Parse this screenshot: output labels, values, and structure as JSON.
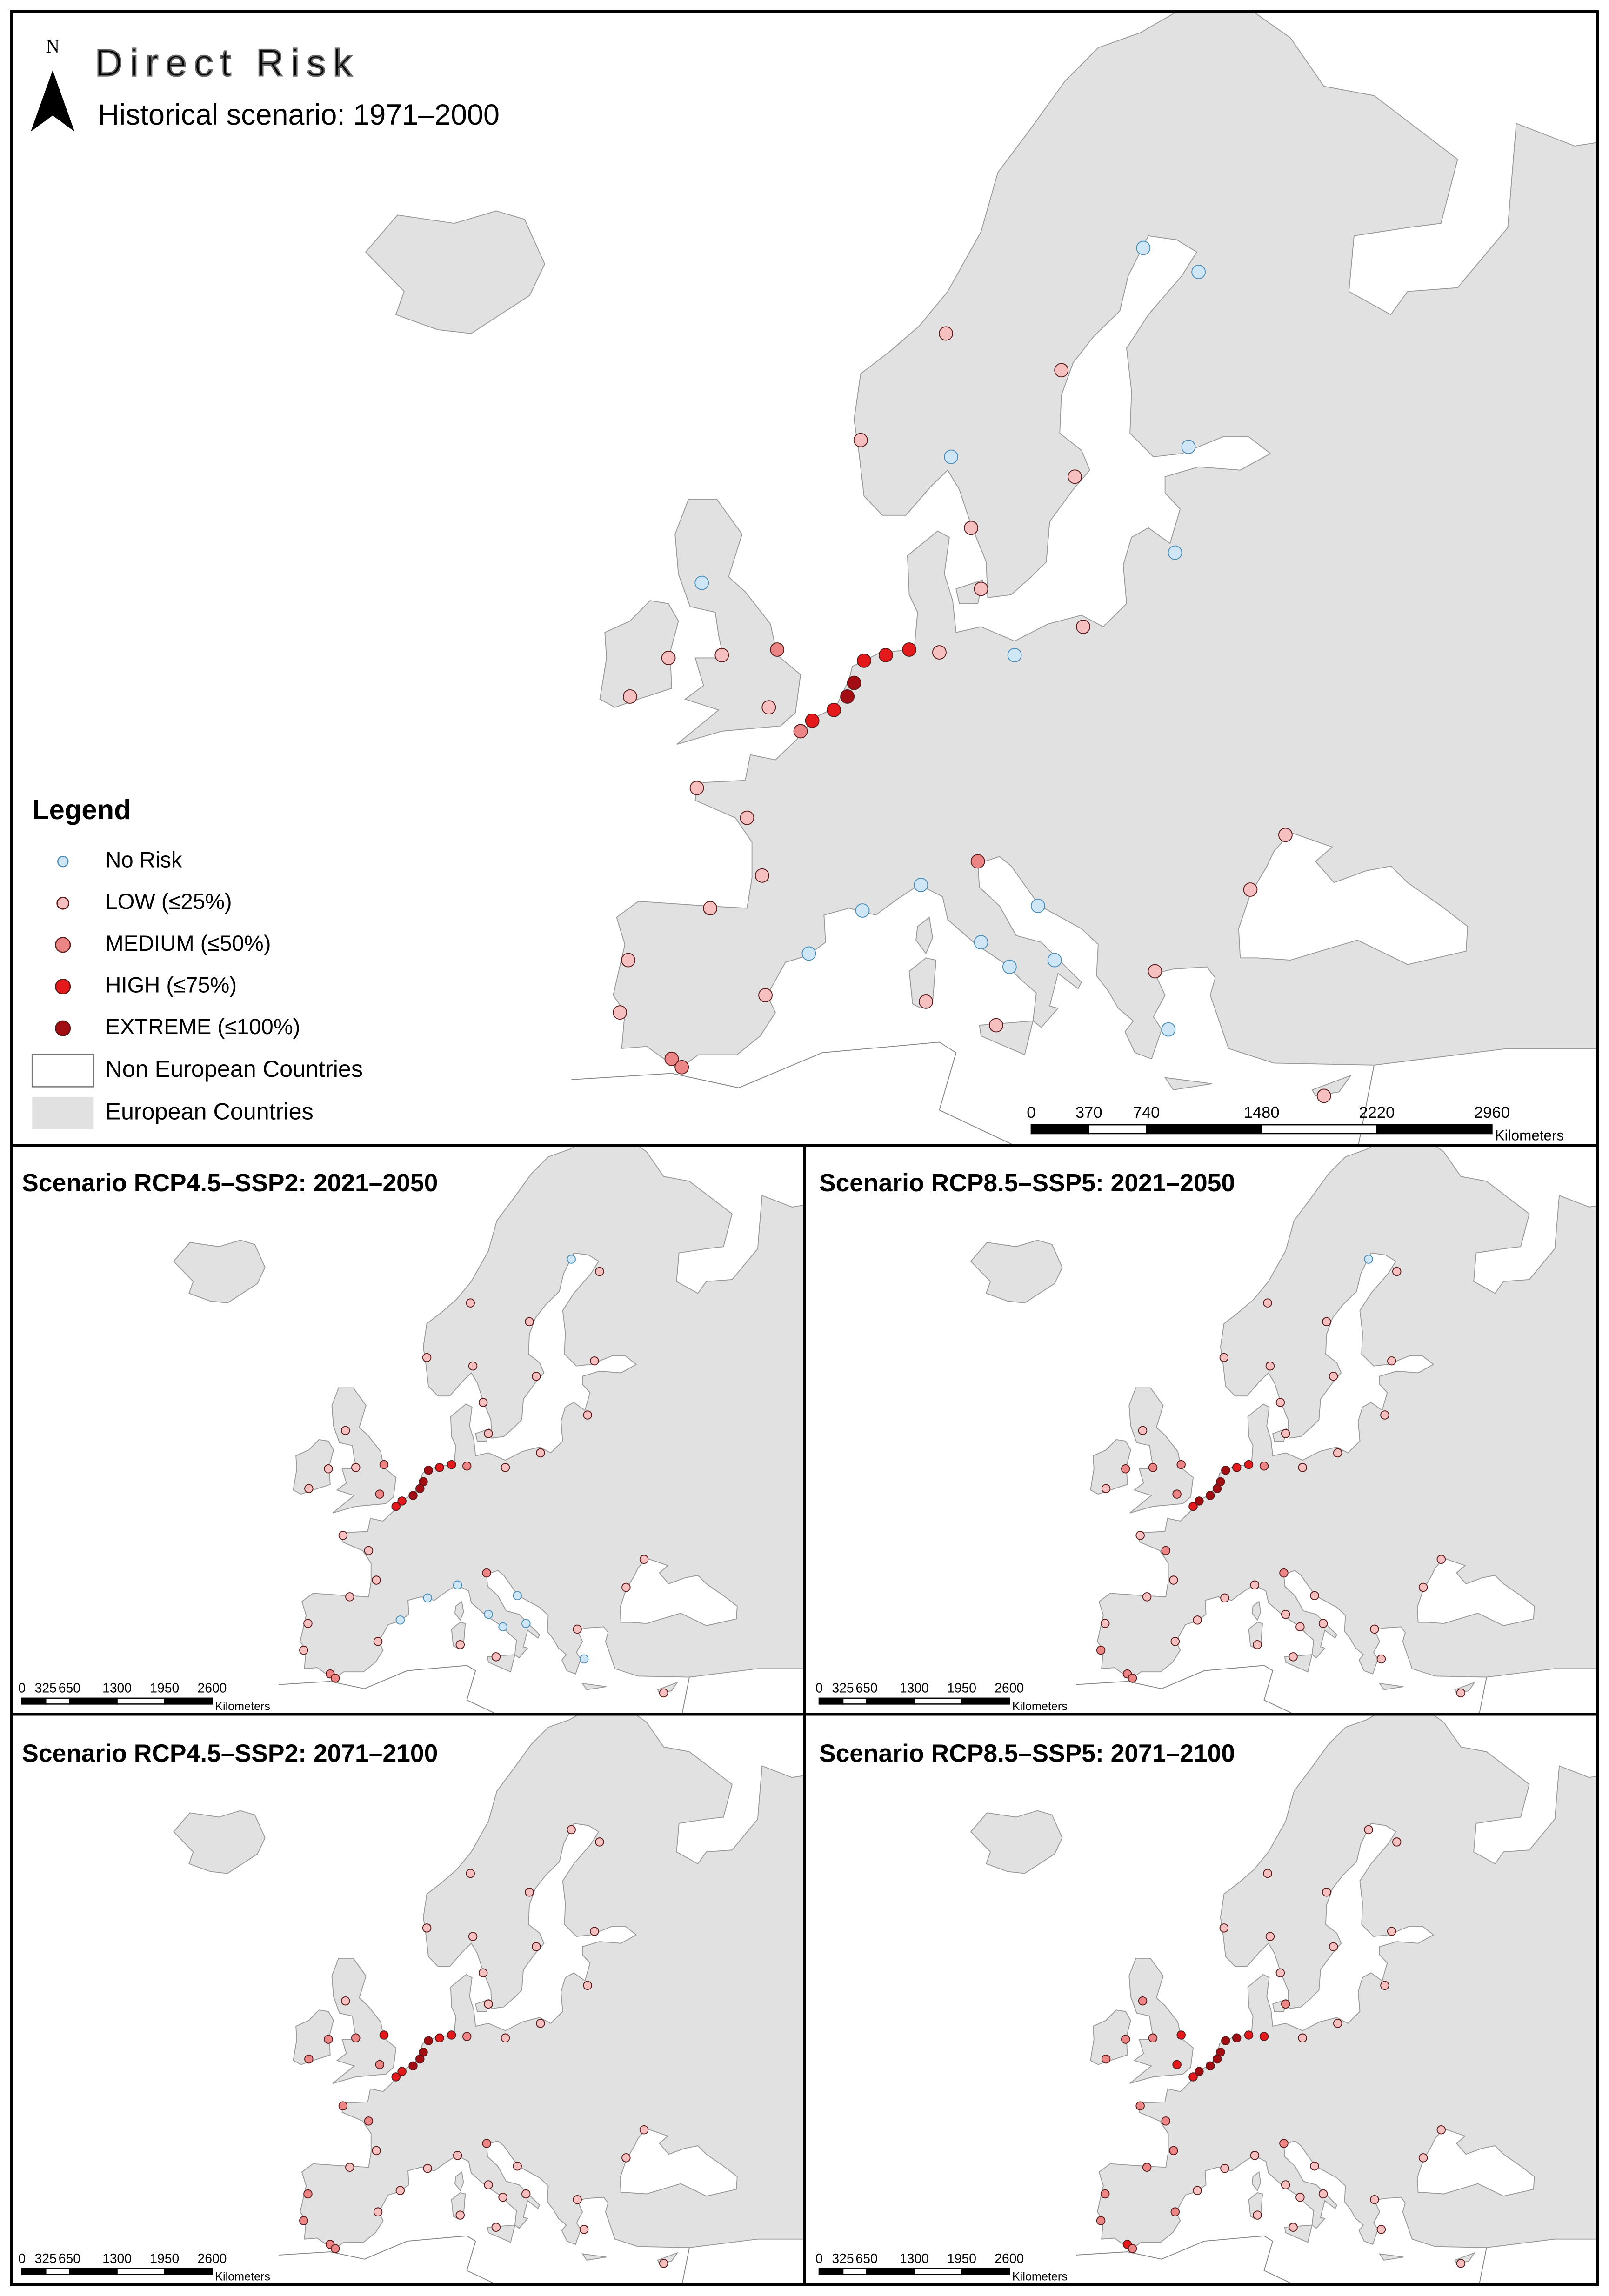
{
  "title": "Direct Risk",
  "north": "N",
  "legend": {
    "title": "Legend",
    "items": [
      {
        "label": "No Risk",
        "color": "#cfe6f6"
      },
      {
        "label": "LOW (≤25%)",
        "color": "#f7c0c0"
      },
      {
        "label": "MEDIUM (≤50%)",
        "color": "#ec8686"
      },
      {
        "label": "HIGH (≤75%)",
        "color": "#e3191c"
      },
      {
        "label": "EXTREME (≤100%)",
        "color": "#a10d12"
      }
    ],
    "non_european": "Non European Countries",
    "european": "European Countries"
  },
  "sites": [
    [
      4.9,
      52.4
    ],
    [
      4.5,
      51.9
    ],
    [
      3.7,
      51.4
    ],
    [
      5.5,
      53.2
    ],
    [
      6.8,
      53.4
    ],
    [
      8.2,
      53.6
    ],
    [
      2.4,
      51.0
    ],
    [
      1.7,
      50.6
    ],
    [
      0.3,
      53.6
    ],
    [
      -0.2,
      51.5
    ],
    [
      -3,
      53.4
    ],
    [
      -4.2,
      55.9
    ],
    [
      -6.2,
      53.3
    ],
    [
      -8.5,
      51.9
    ],
    [
      -1.5,
      47.2
    ],
    [
      -0.6,
      44.8
    ],
    [
      -4.5,
      48.4
    ],
    [
      -8.6,
      41.1
    ],
    [
      -9.1,
      38.7
    ],
    [
      -6.0,
      36.5
    ],
    [
      -3.7,
      43.4
    ],
    [
      -0.4,
      39.5
    ],
    [
      2.2,
      41.4
    ],
    [
      5.4,
      43.3
    ],
    [
      8.9,
      44.4
    ],
    [
      12.3,
      45.4
    ],
    [
      14.2,
      40.8
    ],
    [
      12.5,
      41.9
    ],
    [
      16.9,
      41.1
    ],
    [
      15.9,
      43.5
    ],
    [
      23.7,
      37.9
    ],
    [
      22.9,
      40.6
    ],
    [
      28.6,
      44.2
    ],
    [
      30.7,
      46.5
    ],
    [
      9.2,
      39.2
    ],
    [
      13.4,
      38.1
    ],
    [
      10.0,
      53.5
    ],
    [
      12.5,
      55.7
    ],
    [
      18.6,
      54.4
    ],
    [
      24.1,
      56.9
    ],
    [
      24.9,
      60.2
    ],
    [
      18.1,
      59.3
    ],
    [
      11.9,
      57.7
    ],
    [
      10.7,
      59.9
    ],
    [
      5.3,
      60.4
    ],
    [
      10.4,
      63.4
    ],
    [
      22.2,
      65.6
    ],
    [
      25.5,
      65.0
    ],
    [
      17.3,
      62.4
    ],
    [
      14.5,
      53.4
    ],
    [
      33.0,
      34.7
    ],
    [
      -5.4,
      36.1
    ]
  ],
  "panels": [
    {
      "title": "Historical scenario: 1971–2000",
      "risk": [
        4,
        4,
        3,
        3,
        3,
        3,
        3,
        2,
        2,
        1,
        1,
        0,
        1,
        1,
        1,
        1,
        1,
        1,
        1,
        2,
        1,
        1,
        0,
        0,
        0,
        2,
        0,
        0,
        0,
        0,
        0,
        1,
        1,
        1,
        1,
        1,
        1,
        1,
        1,
        0,
        0,
        1,
        1,
        0,
        1,
        1,
        0,
        0,
        1,
        0,
        1,
        2
      ],
      "scale": {
        "ticks": [
          0,
          370,
          740,
          1480,
          2220,
          2960
        ],
        "unit": "Kilometers"
      }
    },
    {
      "title": "Scenario RCP4.5–SSP2: 2021–2050",
      "risk": [
        4,
        4,
        4,
        4,
        3,
        3,
        3,
        3,
        2,
        2,
        1,
        1,
        1,
        1,
        1,
        1,
        1,
        1,
        1,
        2,
        1,
        1,
        0,
        0,
        0,
        2,
        0,
        0,
        0,
        0,
        0,
        1,
        1,
        1,
        1,
        1,
        2,
        1,
        1,
        1,
        1,
        1,
        1,
        1,
        1,
        1,
        0,
        1,
        1,
        1,
        1,
        2
      ],
      "scale": {
        "ticks": [
          0,
          325,
          650,
          1300,
          1950,
          2600
        ],
        "unit": "Kilometers"
      }
    },
    {
      "title": "Scenario RCP8.5–SSP5: 2021–2050",
      "risk": [
        4,
        4,
        4,
        4,
        3,
        3,
        4,
        3,
        2,
        2,
        2,
        1,
        2,
        1,
        2,
        1,
        1,
        1,
        2,
        2,
        1,
        1,
        1,
        1,
        1,
        2,
        1,
        1,
        1,
        1,
        1,
        1,
        1,
        1,
        1,
        1,
        2,
        1,
        1,
        1,
        1,
        1,
        1,
        1,
        1,
        1,
        0,
        1,
        1,
        1,
        1,
        2
      ],
      "scale": {
        "ticks": [
          0,
          325,
          650,
          1300,
          1950,
          2600
        ],
        "unit": "Kilometers"
      }
    },
    {
      "title": "Scenario RCP4.5–SSP2: 2071–2100",
      "risk": [
        4,
        4,
        4,
        4,
        3,
        3,
        3,
        3,
        3,
        2,
        2,
        1,
        2,
        2,
        2,
        1,
        2,
        2,
        2,
        2,
        1,
        1,
        1,
        1,
        1,
        2,
        1,
        1,
        1,
        1,
        1,
        1,
        1,
        1,
        1,
        1,
        2,
        1,
        1,
        1,
        1,
        1,
        1,
        1,
        1,
        1,
        1,
        1,
        1,
        1,
        1,
        2
      ],
      "scale": {
        "ticks": [
          0,
          325,
          650,
          1300,
          1950,
          2600
        ],
        "unit": "Kilometers"
      }
    },
    {
      "title": "Scenario RCP8.5–SSP5: 2071–2100",
      "risk": [
        4,
        4,
        4,
        4,
        4,
        3,
        4,
        3,
        3,
        3,
        2,
        2,
        2,
        2,
        2,
        2,
        2,
        2,
        2,
        3,
        2,
        2,
        1,
        1,
        1,
        2,
        1,
        1,
        1,
        1,
        1,
        1,
        1,
        1,
        1,
        1,
        3,
        2,
        1,
        1,
        1,
        1,
        1,
        1,
        1,
        1,
        1,
        1,
        1,
        1,
        1,
        2
      ],
      "scale": {
        "ticks": [
          0,
          325,
          650,
          1300,
          1950,
          2600
        ],
        "unit": "Kilometers"
      }
    }
  ]
}
